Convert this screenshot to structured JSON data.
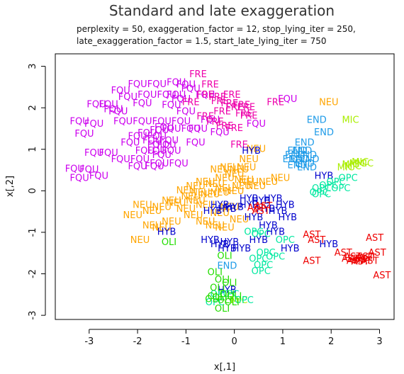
{
  "chart_data": {
    "type": "scatter",
    "title": "Standard and late exaggeration",
    "subtitle_lines": [
      "perplexity = 50, exaggeration_factor = 12, stop_lying_iter = 250,",
      "late_exaggeration_factor = 1.5, start_late_lying_iter = 750"
    ],
    "xlabel": "x[,1]",
    "ylabel": "x[,2]",
    "xlim": [
      -3.7,
      3.3
    ],
    "ylim": [
      -3.1,
      3.3
    ],
    "x_ticks": [
      -3,
      -2,
      -1,
      0,
      1,
      2,
      3
    ],
    "y_ticks": [
      -3,
      -2,
      -1,
      0,
      1,
      2,
      3
    ],
    "grid": false,
    "legend": "none",
    "colors": {
      "FQU": "#cc00ee",
      "FRE": "#ee00aa",
      "NEU": "#ffa500",
      "END": "#1e9be8",
      "MIC": "#aaee00",
      "HYB": "#0000cc",
      "OPC": "#00e8a0",
      "OLI": "#22dd00",
      "AST": "#ee0000"
    },
    "series": [
      {
        "label": "FQU",
        "points": [
          [
            -2.0,
            2.56
          ],
          [
            -1.6,
            2.56
          ],
          [
            -2.35,
            2.4
          ],
          [
            -2.6,
            2.07
          ],
          [
            -2.85,
            2.07
          ],
          [
            -2.5,
            1.95
          ],
          [
            -2.2,
            2.25
          ],
          [
            -1.8,
            2.3
          ],
          [
            -1.4,
            2.3
          ],
          [
            -1.2,
            2.3
          ],
          [
            -1.9,
            2.1
          ],
          [
            -2.4,
            1.9
          ],
          [
            -2.9,
            1.6
          ],
          [
            -3.2,
            1.66
          ],
          [
            -3.1,
            1.36
          ],
          [
            -2.3,
            1.66
          ],
          [
            -1.9,
            1.66
          ],
          [
            -1.5,
            1.66
          ],
          [
            -1.1,
            1.66
          ],
          [
            -1.55,
            1.45
          ],
          [
            -1.6,
            1.3
          ],
          [
            -1.8,
            1.38
          ],
          [
            -2.0,
            1.3
          ],
          [
            -2.15,
            1.15
          ],
          [
            -1.7,
            1.2
          ],
          [
            -1.4,
            1.1
          ],
          [
            -1.3,
            0.95
          ],
          [
            -1.6,
            0.95
          ],
          [
            -1.85,
            0.95
          ],
          [
            -2.6,
            0.9
          ],
          [
            -2.9,
            0.9
          ],
          [
            -2.35,
            0.75
          ],
          [
            -1.95,
            0.75
          ],
          [
            -1.55,
            0.65
          ],
          [
            -1.15,
            0.65
          ],
          [
            -2.0,
            0.58
          ],
          [
            -1.65,
            0.58
          ],
          [
            -3.0,
            0.5
          ],
          [
            -3.3,
            0.52
          ],
          [
            -2.8,
            0.35
          ],
          [
            -3.2,
            0.3
          ],
          [
            -1.3,
            1.48
          ],
          [
            -0.9,
            1.48
          ],
          [
            -0.75,
            1.48
          ],
          [
            -0.8,
            1.15
          ],
          [
            -1.45,
            1.52
          ],
          [
            -1.6,
            1.1
          ],
          [
            -1.5,
            0.85
          ],
          [
            -1.35,
            1.2
          ],
          [
            -1.2,
            2.6
          ],
          [
            -1.0,
            2.55
          ],
          [
            -0.9,
            2.45
          ],
          [
            -1.1,
            2.2
          ],
          [
            -1.3,
            2.05
          ],
          [
            -0.5,
            1.7
          ],
          [
            -0.3,
            1.4
          ],
          [
            0.45,
            1.6
          ],
          [
            1.1,
            2.2
          ],
          [
            -0.6,
            2.3
          ],
          [
            -1.0,
            1.9
          ]
        ]
      },
      {
        "label": "FRE",
        "points": [
          [
            -0.75,
            2.8
          ],
          [
            -0.5,
            2.55
          ],
          [
            -0.6,
            2.3
          ],
          [
            -0.35,
            2.25
          ],
          [
            -0.1,
            2.1
          ],
          [
            -0.25,
            1.9
          ],
          [
            0.0,
            2.0
          ],
          [
            0.15,
            2.05
          ],
          [
            0.2,
            1.85
          ],
          [
            0.3,
            1.8
          ],
          [
            -0.6,
            1.78
          ],
          [
            -0.4,
            1.65
          ],
          [
            -0.2,
            1.55
          ],
          [
            0.0,
            1.5
          ],
          [
            0.1,
            1.1
          ],
          [
            0.85,
            2.12
          ],
          [
            -0.9,
            2.12
          ],
          [
            -0.3,
            2.15
          ],
          [
            -0.05,
            2.3
          ],
          [
            0.25,
            2.0
          ]
        ]
      },
      {
        "label": "NEU",
        "points": [
          [
            1.95,
            2.12
          ],
          [
            0.45,
            1.0
          ],
          [
            0.3,
            0.75
          ],
          [
            0.1,
            0.5
          ],
          [
            -0.1,
            0.55
          ],
          [
            0.2,
            0.25
          ],
          [
            0.0,
            0.4
          ],
          [
            -0.3,
            0.5
          ],
          [
            -0.2,
            0.3
          ],
          [
            -0.4,
            0.15
          ],
          [
            -0.6,
            0.2
          ],
          [
            -0.8,
            0.1
          ],
          [
            -1.0,
            0.0
          ],
          [
            -0.9,
            -0.15
          ],
          [
            -0.7,
            -0.05
          ],
          [
            -0.5,
            -0.1
          ],
          [
            -0.3,
            -0.05
          ],
          [
            -0.2,
            0.05
          ],
          [
            0.0,
            -0.02
          ],
          [
            0.15,
            0.1
          ],
          [
            0.3,
            0.2
          ],
          [
            0.45,
            0.1
          ],
          [
            0.7,
            0.2
          ],
          [
            0.95,
            0.3
          ],
          [
            -1.3,
            -0.25
          ],
          [
            -1.5,
            -0.4
          ],
          [
            -1.7,
            -0.5
          ],
          [
            -2.1,
            -0.6
          ],
          [
            -1.9,
            -0.35
          ],
          [
            -1.7,
            -0.85
          ],
          [
            -1.5,
            -0.9
          ],
          [
            -1.95,
            -1.2
          ],
          [
            -1.2,
            -0.3
          ],
          [
            -1.0,
            -0.45
          ],
          [
            -0.85,
            -0.6
          ],
          [
            -0.6,
            -0.75
          ],
          [
            -0.4,
            -0.85
          ],
          [
            -0.3,
            -0.55
          ],
          [
            -0.1,
            -0.4
          ],
          [
            -1.3,
            -0.75
          ],
          [
            -0.2,
            -0.9
          ],
          [
            0.1,
            -0.7
          ],
          [
            0.25,
            0.55
          ],
          [
            -0.6,
            -0.35
          ],
          [
            -0.8,
            -0.25
          ]
        ]
      },
      {
        "label": "END",
        "points": [
          [
            1.7,
            1.7
          ],
          [
            1.85,
            1.4
          ],
          [
            1.45,
            1.15
          ],
          [
            1.3,
            0.95
          ],
          [
            1.5,
            0.85
          ],
          [
            1.35,
            0.75
          ],
          [
            1.2,
            0.75
          ],
          [
            1.45,
            0.65
          ],
          [
            1.3,
            0.6
          ],
          [
            1.5,
            0.55
          ],
          [
            1.25,
            0.85
          ],
          [
            1.4,
            0.95
          ],
          [
            1.55,
            0.75
          ],
          [
            -0.15,
            -1.82
          ]
        ]
      },
      {
        "label": "MIC",
        "points": [
          [
            2.4,
            1.7
          ],
          [
            2.55,
            0.65
          ],
          [
            2.6,
            0.68
          ],
          [
            2.4,
            0.62
          ],
          [
            2.45,
            0.58
          ],
          [
            2.7,
            0.65
          ],
          [
            2.3,
            0.55
          ],
          [
            0.1,
            -2.65
          ]
        ]
      },
      {
        "label": "HYB",
        "points": [
          [
            0.35,
            0.95
          ],
          [
            1.85,
            0.35
          ],
          [
            0.3,
            -0.2
          ],
          [
            0.55,
            -0.25
          ],
          [
            0.8,
            -0.2
          ],
          [
            1.05,
            -0.35
          ],
          [
            0.65,
            -0.45
          ],
          [
            0.9,
            -0.5
          ],
          [
            1.1,
            -0.65
          ],
          [
            0.4,
            -0.65
          ],
          [
            0.7,
            -0.85
          ],
          [
            0.3,
            -0.35
          ],
          [
            0.0,
            -0.4
          ],
          [
            -0.15,
            -0.45
          ],
          [
            -0.3,
            -0.35
          ],
          [
            -0.45,
            -0.5
          ],
          [
            -1.4,
            -1.0
          ],
          [
            -0.5,
            -1.2
          ],
          [
            -0.3,
            -1.3
          ],
          [
            -0.15,
            -1.4
          ],
          [
            0.15,
            -1.4
          ],
          [
            0.5,
            -1.2
          ],
          [
            1.15,
            -1.4
          ],
          [
            0.85,
            -1.0
          ],
          [
            -0.1,
            -1.25
          ],
          [
            1.95,
            -1.3
          ],
          [
            -0.15,
            -2.4
          ]
        ]
      },
      {
        "label": "OPC",
        "points": [
          [
            2.35,
            0.3
          ],
          [
            2.1,
            0.2
          ],
          [
            1.95,
            0.12
          ],
          [
            2.2,
            0.05
          ],
          [
            1.8,
            0.05
          ],
          [
            1.8,
            -0.1
          ],
          [
            1.75,
            -0.05
          ],
          [
            0.4,
            -1.0
          ],
          [
            0.55,
            -1.05
          ],
          [
            1.05,
            -1.2
          ],
          [
            0.65,
            -1.5
          ],
          [
            0.85,
            -1.6
          ],
          [
            0.5,
            -1.65
          ],
          [
            0.6,
            -1.8
          ],
          [
            0.55,
            -1.95
          ],
          [
            -0.1,
            -2.5
          ],
          [
            -0.3,
            -2.5
          ],
          [
            -0.4,
            -2.7
          ],
          [
            0.2,
            -2.65
          ]
        ]
      },
      {
        "label": "OLI",
        "points": [
          [
            -1.35,
            -1.25
          ],
          [
            -0.2,
            -1.58
          ],
          [
            -0.4,
            -1.97
          ],
          [
            -0.35,
            -2.35
          ],
          [
            -0.1,
            -2.23
          ],
          [
            -0.25,
            -2.15
          ],
          [
            -0.15,
            -2.5
          ],
          [
            -0.3,
            -2.58
          ],
          [
            -0.4,
            -2.55
          ],
          [
            -0.2,
            -2.65
          ],
          [
            -0.05,
            -2.7
          ],
          [
            -0.45,
            -2.62
          ],
          [
            -0.25,
            -2.85
          ],
          [
            0.0,
            -2.55
          ]
        ]
      },
      {
        "label": "AST",
        "points": [
          [
            1.6,
            -1.07
          ],
          [
            1.7,
            -1.2
          ],
          [
            2.25,
            -1.5
          ],
          [
            1.6,
            -1.7
          ],
          [
            2.9,
            -1.15
          ],
          [
            2.95,
            -1.5
          ],
          [
            3.05,
            -2.05
          ],
          [
            2.45,
            -1.6
          ],
          [
            2.55,
            -1.65
          ],
          [
            2.65,
            -1.68
          ],
          [
            2.75,
            -1.62
          ],
          [
            2.5,
            -1.7
          ],
          [
            2.6,
            -1.72
          ],
          [
            2.7,
            -1.6
          ],
          [
            2.4,
            -1.65
          ],
          [
            2.8,
            -1.7
          ],
          [
            0.55,
            -0.5
          ],
          [
            0.6,
            -0.38
          ],
          [
            0.45,
            -0.42
          ]
        ]
      }
    ]
  }
}
